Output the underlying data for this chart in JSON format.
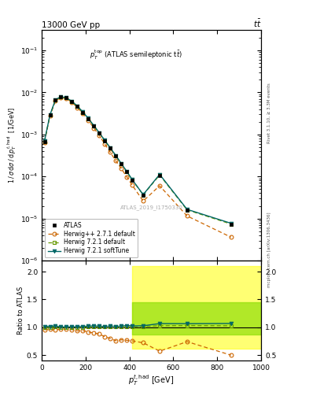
{
  "title_left": "13000 GeV pp",
  "title_right": "tt",
  "right_label_top": "Rivet 3.1.10, ≥ 3.3M events",
  "right_label_bot": "mcplots.cern.ch [arXiv:1306.3436]",
  "ref_label": "ATLAS_2019_I1750330",
  "ylabel_main": "1 / σ dσ / d p_T^{t,had}  [1/GeV]",
  "ylabel_ratio": "Ratio to ATLAS",
  "xlabel": "p_T^{t,had} [GeV]",
  "xlim": [
    0,
    1000
  ],
  "ylim_main_lo": 1e-06,
  "ylim_main_hi": 0.3,
  "ylim_ratio": [
    0.4,
    2.2
  ],
  "ratio_yticks": [
    0.5,
    1.0,
    1.5,
    2.0
  ],
  "atlas_x": [
    12.5,
    37.5,
    62.5,
    87.5,
    112.5,
    137.5,
    162.5,
    187.5,
    212.5,
    237.5,
    262.5,
    287.5,
    312.5,
    337.5,
    362.5,
    387.5,
    412.5,
    462.5,
    537.5,
    662.5,
    862.5
  ],
  "atlas_y": [
    0.00068,
    0.00285,
    0.0065,
    0.00785,
    0.00735,
    0.00605,
    0.00465,
    0.00335,
    0.00235,
    0.00158,
    0.00107,
    0.00071,
    0.00047,
    0.00031,
    0.0002,
    0.000128,
    8.2e-05,
    3.6e-05,
    0.000105,
    1.55e-05,
    7.2e-06
  ],
  "hwpp_x": [
    12.5,
    37.5,
    62.5,
    87.5,
    112.5,
    137.5,
    162.5,
    187.5,
    212.5,
    237.5,
    262.5,
    287.5,
    312.5,
    337.5,
    362.5,
    387.5,
    412.5,
    462.5,
    537.5,
    662.5,
    862.5
  ],
  "hwpp_y": [
    0.00065,
    0.00275,
    0.0062,
    0.0076,
    0.0071,
    0.0058,
    0.00435,
    0.00315,
    0.00215,
    0.00142,
    0.00094,
    0.00059,
    0.000375,
    0.000235,
    0.000155,
    9.8e-05,
    6.2e-05,
    2.6e-05,
    6e-05,
    1.15e-05,
    3.6e-06
  ],
  "hw721d_x": [
    12.5,
    37.5,
    62.5,
    87.5,
    112.5,
    137.5,
    162.5,
    187.5,
    212.5,
    237.5,
    262.5,
    287.5,
    312.5,
    337.5,
    362.5,
    387.5,
    412.5,
    462.5,
    537.5,
    662.5,
    862.5
  ],
  "hw721d_y": [
    0.00068,
    0.00285,
    0.00655,
    0.00785,
    0.00735,
    0.00605,
    0.00465,
    0.00335,
    0.00237,
    0.0016,
    0.00108,
    0.000715,
    0.000475,
    0.000312,
    0.000202,
    0.00013,
    8.3e-05,
    3.65e-05,
    0.000108,
    1.6e-05,
    7.4e-06
  ],
  "hw721s_x": [
    12.5,
    37.5,
    62.5,
    87.5,
    112.5,
    137.5,
    162.5,
    187.5,
    212.5,
    237.5,
    262.5,
    287.5,
    312.5,
    337.5,
    362.5,
    387.5,
    412.5,
    462.5,
    537.5,
    662.5,
    862.5
  ],
  "hw721s_y": [
    0.00069,
    0.0029,
    0.00665,
    0.0079,
    0.0074,
    0.0061,
    0.0047,
    0.0034,
    0.0024,
    0.00162,
    0.00109,
    0.00072,
    0.00048,
    0.000315,
    0.000204,
    0.000132,
    8.4e-05,
    3.7e-05,
    0.000112,
    1.65e-05,
    7.7e-06
  ],
  "atlas_color": "#000000",
  "hwpp_color": "#cc6600",
  "hw721d_color": "#669900",
  "hw721s_color": "#006666",
  "ratio_hwpp": [
    0.956,
    0.965,
    0.954,
    0.969,
    0.967,
    0.959,
    0.936,
    0.94,
    0.915,
    0.899,
    0.879,
    0.831,
    0.798,
    0.758,
    0.775,
    0.766,
    0.756,
    0.722,
    0.571,
    0.742,
    0.5
  ],
  "ratio_hw721d": [
    1.0,
    1.0,
    1.008,
    1.0,
    1.0,
    1.0,
    1.0,
    1.0,
    1.009,
    1.013,
    1.009,
    1.007,
    1.011,
    1.006,
    1.01,
    1.016,
    1.012,
    1.014,
    1.029,
    1.032,
    1.028
  ],
  "ratio_hw721s": [
    1.015,
    1.018,
    1.023,
    1.006,
    1.007,
    1.008,
    1.011,
    1.015,
    1.021,
    1.025,
    1.019,
    1.014,
    1.021,
    1.016,
    1.02,
    1.031,
    1.024,
    1.028,
    1.067,
    1.065,
    1.069
  ],
  "band_yellow_xstart": 412.5,
  "band_yellow_ylo": 0.62,
  "band_yellow_yhi": 2.1,
  "band_green_xstart": 412.5,
  "band_green_ylo": 0.87,
  "band_green_yhi": 1.45
}
